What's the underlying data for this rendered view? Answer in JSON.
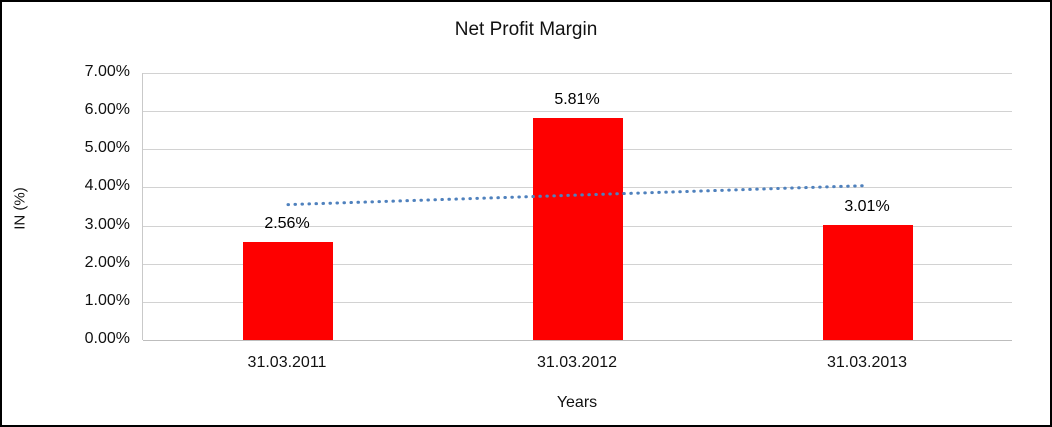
{
  "chart_data": {
    "type": "bar",
    "title": "Net Profit Margin",
    "xlabel": "Years",
    "ylabel": "IN (%)",
    "categories": [
      "31.03.2011",
      "31.03.2012",
      "31.03.2013"
    ],
    "values": [
      2.56,
      5.81,
      3.01
    ],
    "data_labels": [
      "2.56%",
      "5.81%",
      "3.01%"
    ],
    "bar_color": "#fe0000",
    "ylim": [
      0,
      7
    ],
    "ytick_step": 1,
    "ytick_labels": [
      "0.00%",
      "1.00%",
      "2.00%",
      "3.00%",
      "4.00%",
      "5.00%",
      "6.00%",
      "7.00%"
    ],
    "grid": true,
    "legend": "none",
    "trendline": {
      "type": "linear",
      "style": "dotted",
      "color": "#4f81bd",
      "start_value": 3.55,
      "end_value": 4.05
    }
  }
}
